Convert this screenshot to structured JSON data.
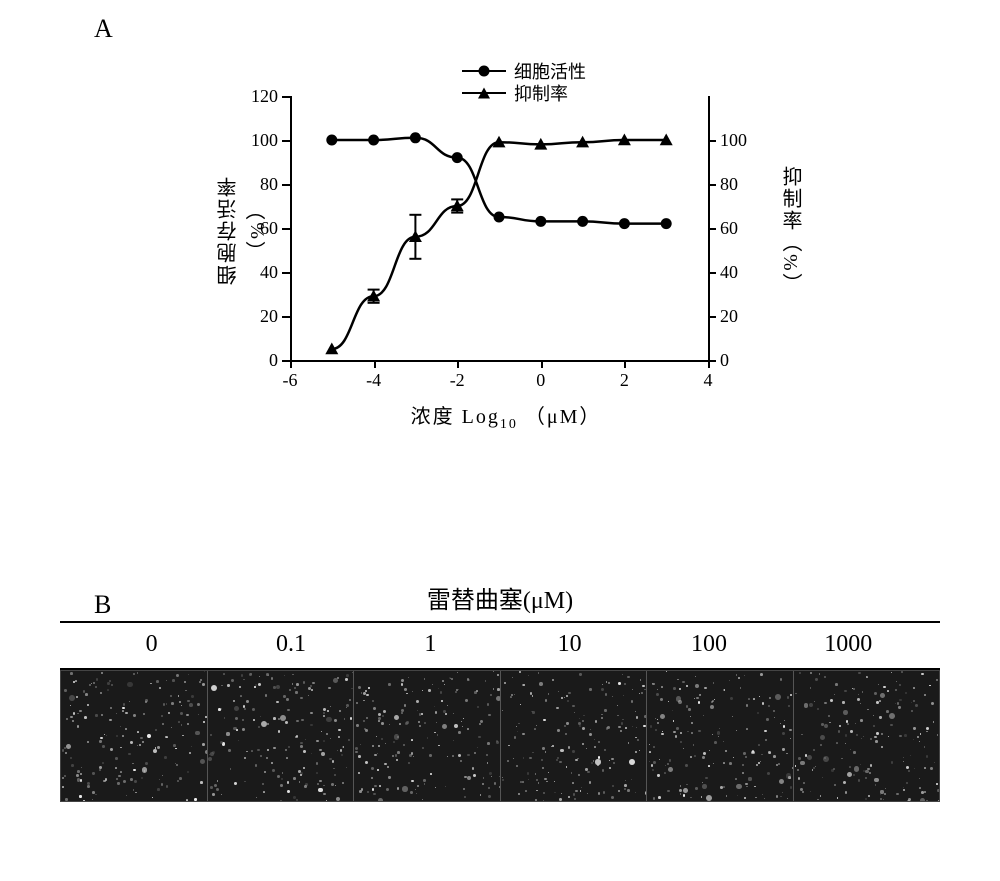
{
  "panelA": {
    "label": "A",
    "legend": {
      "series1": {
        "label": "细胞活性",
        "marker": "circle"
      },
      "series2": {
        "label": "抑制率",
        "marker": "triangle"
      }
    },
    "xaxis": {
      "label_prefix": "浓度  Log",
      "label_sub": "10",
      "label_suffix": "（μM）",
      "ticks": [
        -6,
        -4,
        -2,
        0,
        2,
        4
      ],
      "xlim": [
        -6,
        4
      ]
    },
    "y1axis": {
      "label": "细胞存活率（%）",
      "ticks": [
        0,
        20,
        40,
        60,
        80,
        100,
        120
      ],
      "ylim": [
        0,
        120
      ]
    },
    "y2axis": {
      "label": "抑制率（%）",
      "ticks": [
        0,
        20,
        40,
        60,
        80,
        100
      ],
      "ylim": [
        0,
        120
      ]
    },
    "series_viability": {
      "marker": "circle",
      "x": [
        -5,
        -4,
        -3,
        -2,
        -1,
        0,
        1,
        2,
        3
      ],
      "y": [
        100,
        100,
        101,
        92,
        65,
        63,
        63,
        62,
        62
      ]
    },
    "series_inhibition": {
      "marker": "triangle",
      "x": [
        -5,
        -4,
        -3,
        -2,
        -1,
        0,
        1,
        2,
        3
      ],
      "y": [
        5,
        29,
        56,
        70,
        99,
        98,
        99,
        100,
        100
      ],
      "err": [
        0,
        3,
        10,
        3,
        0,
        0,
        0,
        0,
        0
      ]
    },
    "colors": {
      "line": "#000000",
      "marker": "#000000",
      "axis": "#000000",
      "bg": "#ffffff"
    },
    "line_width": 2.5,
    "marker_size": 11,
    "font_size_axis": 18,
    "font_size_label": 20
  },
  "panelB": {
    "label": "B",
    "title": "雷替曲塞(μM)",
    "concentrations": [
      "0",
      "0.1",
      "1",
      "10",
      "100",
      "1000"
    ],
    "image_bg": "#1a1a1a",
    "speckle_colors": [
      "#f0f0f0",
      "#cccccc",
      "#999999",
      "#666666"
    ],
    "speckle_count_per_panel": 180
  }
}
